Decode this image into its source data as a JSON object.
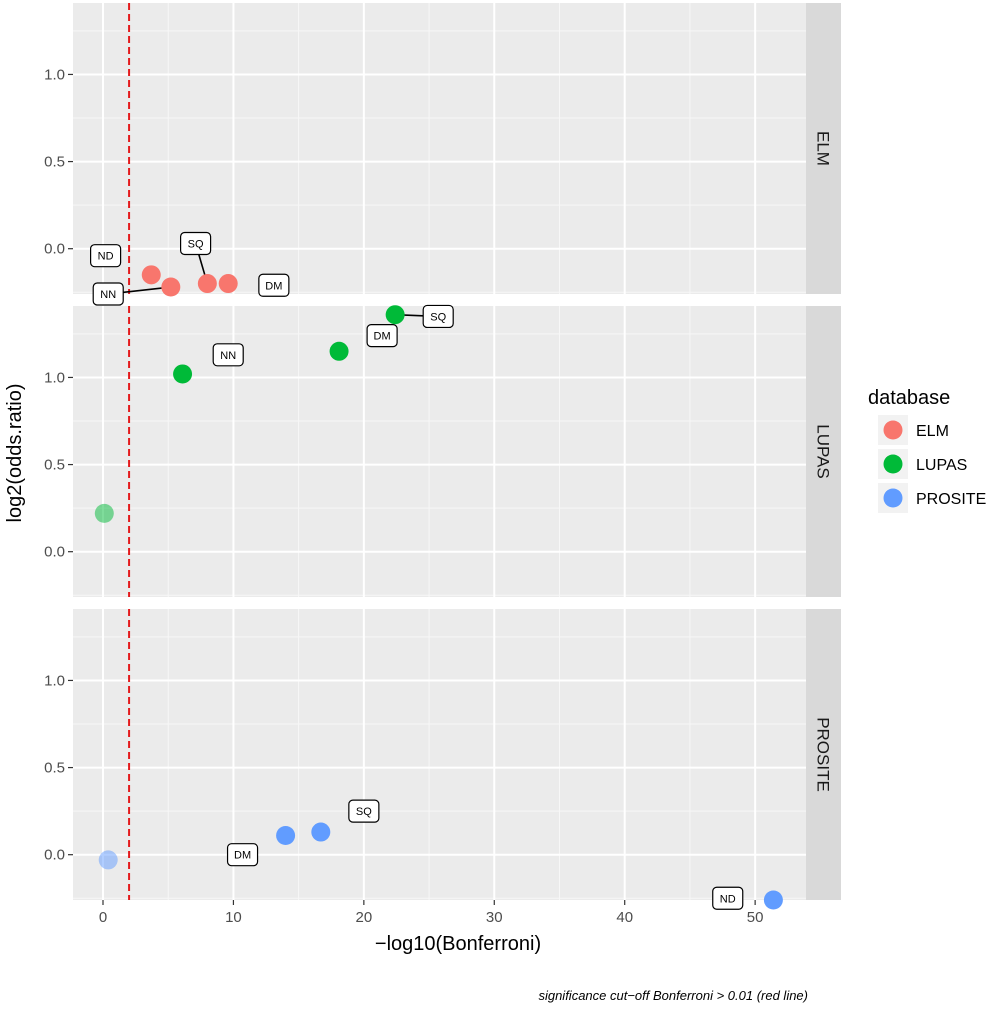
{
  "chart_data": {
    "type": "scatter",
    "layout": "faceted",
    "xlabel": "−log10(Bonferroni)",
    "ylabel": "log2(odds.ratio)",
    "xlim": [
      -2.3,
      53.9
    ],
    "ylim": [
      -0.26,
      1.41
    ],
    "x_ticks": [
      0,
      10,
      20,
      30,
      40,
      50
    ],
    "x_tick_labels": [
      "0",
      "10",
      "20",
      "30",
      "40",
      "50"
    ],
    "y_ticks": [
      0.0,
      0.5,
      1.0
    ],
    "y_tick_labels": [
      "0.0",
      "0.5",
      "1.0"
    ],
    "cutoff_line": {
      "x": 2,
      "color": "#e41a1c",
      "style": "dashed"
    },
    "caption": "significance cut−off Bonferroni > 0.01 (red line)",
    "legend": {
      "title": "database",
      "placement": "right",
      "entries": [
        {
          "name": "ELM",
          "color": "#F8766D"
        },
        {
          "name": "LUPAS",
          "color": "#00BA38"
        },
        {
          "name": "PROSITE",
          "color": "#619CFF"
        }
      ]
    },
    "facets": [
      {
        "name": "ELM",
        "color": "#F8766D",
        "points": [
          {
            "x": 3.7,
            "y": -0.15,
            "label": "ND",
            "alpha": 1
          },
          {
            "x": 5.2,
            "y": -0.22,
            "label": "NN",
            "alpha": 1
          },
          {
            "x": 8.0,
            "y": -0.2,
            "label": "SQ",
            "alpha": 1
          },
          {
            "x": 9.6,
            "y": -0.2,
            "label": "DM",
            "alpha": 1
          }
        ],
        "labels": [
          {
            "text": "ND",
            "x": 0.2,
            "y": -0.04,
            "connector": false
          },
          {
            "text": "NN",
            "x": 0.4,
            "y": -0.26,
            "connector": true
          },
          {
            "text": "SQ",
            "x": 7.1,
            "y": 0.03,
            "connector": true
          },
          {
            "text": "DM",
            "x": 13.1,
            "y": -0.21,
            "connector": false
          }
        ]
      },
      {
        "name": "LUPAS",
        "color": "#00BA38",
        "points": [
          {
            "x": 0.1,
            "y": 0.22,
            "label": "",
            "alpha": 0.5
          },
          {
            "x": 6.1,
            "y": 1.02,
            "label": "NN",
            "alpha": 1
          },
          {
            "x": 18.1,
            "y": 1.15,
            "label": "DM",
            "alpha": 1
          },
          {
            "x": 22.4,
            "y": 1.36,
            "label": "SQ",
            "alpha": 1
          }
        ],
        "labels": [
          {
            "text": "NN",
            "x": 9.6,
            "y": 1.13,
            "connector": false
          },
          {
            "text": "DM",
            "x": 21.4,
            "y": 1.24,
            "connector": false
          },
          {
            "text": "SQ",
            "x": 25.7,
            "y": 1.35,
            "connector": true
          }
        ]
      },
      {
        "name": "PROSITE",
        "color": "#619CFF",
        "points": [
          {
            "x": 0.4,
            "y": -0.03,
            "label": "",
            "alpha": 0.5
          },
          {
            "x": 14.0,
            "y": 0.11,
            "label": "DM",
            "alpha": 1
          },
          {
            "x": 16.7,
            "y": 0.13,
            "label": "SQ",
            "alpha": 1
          },
          {
            "x": 51.4,
            "y": -0.26,
            "label": "ND",
            "alpha": 1
          }
        ],
        "labels": [
          {
            "text": "DM",
            "x": 10.7,
            "y": 0.0,
            "connector": false
          },
          {
            "text": "SQ",
            "x": 20.0,
            "y": 0.25,
            "connector": false
          },
          {
            "text": "ND",
            "x": 47.9,
            "y": -0.25,
            "connector": false
          }
        ]
      }
    ]
  }
}
